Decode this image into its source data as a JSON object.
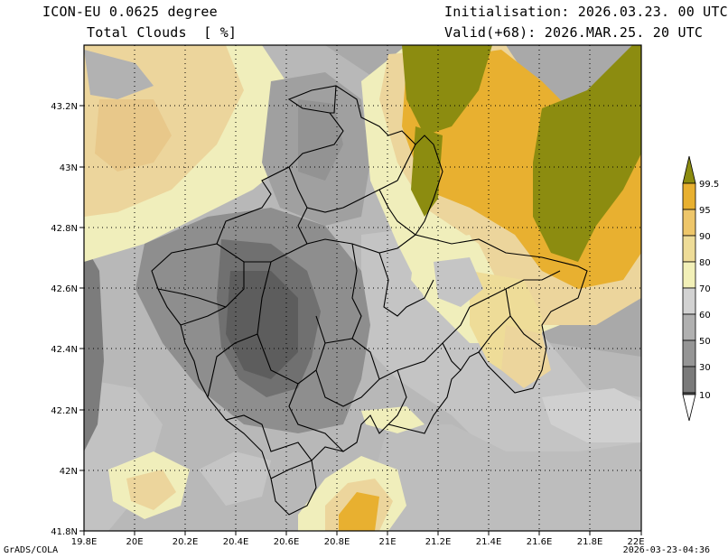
{
  "header": {
    "model": "ICON-EU 0.0625 degree",
    "field": "Total Clouds  [ %]",
    "init": "Initialisation: 2026.03.23. 00 UTC",
    "valid": "Valid(+68): 2026.MAR.25. 20 UTC"
  },
  "footer": {
    "left": "GrADS/COLA",
    "right": "2026-03-23-04:36"
  },
  "map": {
    "lon_min": 19.8,
    "lon_max": 22.0,
    "lat_min": 41.8,
    "lat_max": 43.4,
    "x_ticks": [
      "19.8E",
      "20E",
      "20.2E",
      "20.4E",
      "20.6E",
      "20.8E",
      "21E",
      "21.2E",
      "21.4E",
      "21.6E",
      "21.8E",
      "22E"
    ],
    "y_ticks": [
      "41.8N",
      "42N",
      "42.2N",
      "42.4N",
      "42.6N",
      "42.8N",
      "43N",
      "43.2N"
    ]
  },
  "colorbar": {
    "labels": [
      "10",
      "30",
      "50",
      "60",
      "70",
      "80",
      "90",
      "95",
      "99.5"
    ],
    "colors": [
      "#ffffff",
      "#5a5a5a",
      "#7a7a7a",
      "#959595",
      "#b0b0b0",
      "#d2d2d2",
      "#f2f0b8",
      "#eedc98",
      "#eec66a",
      "#e8b030",
      "#8c8c10"
    ]
  }
}
